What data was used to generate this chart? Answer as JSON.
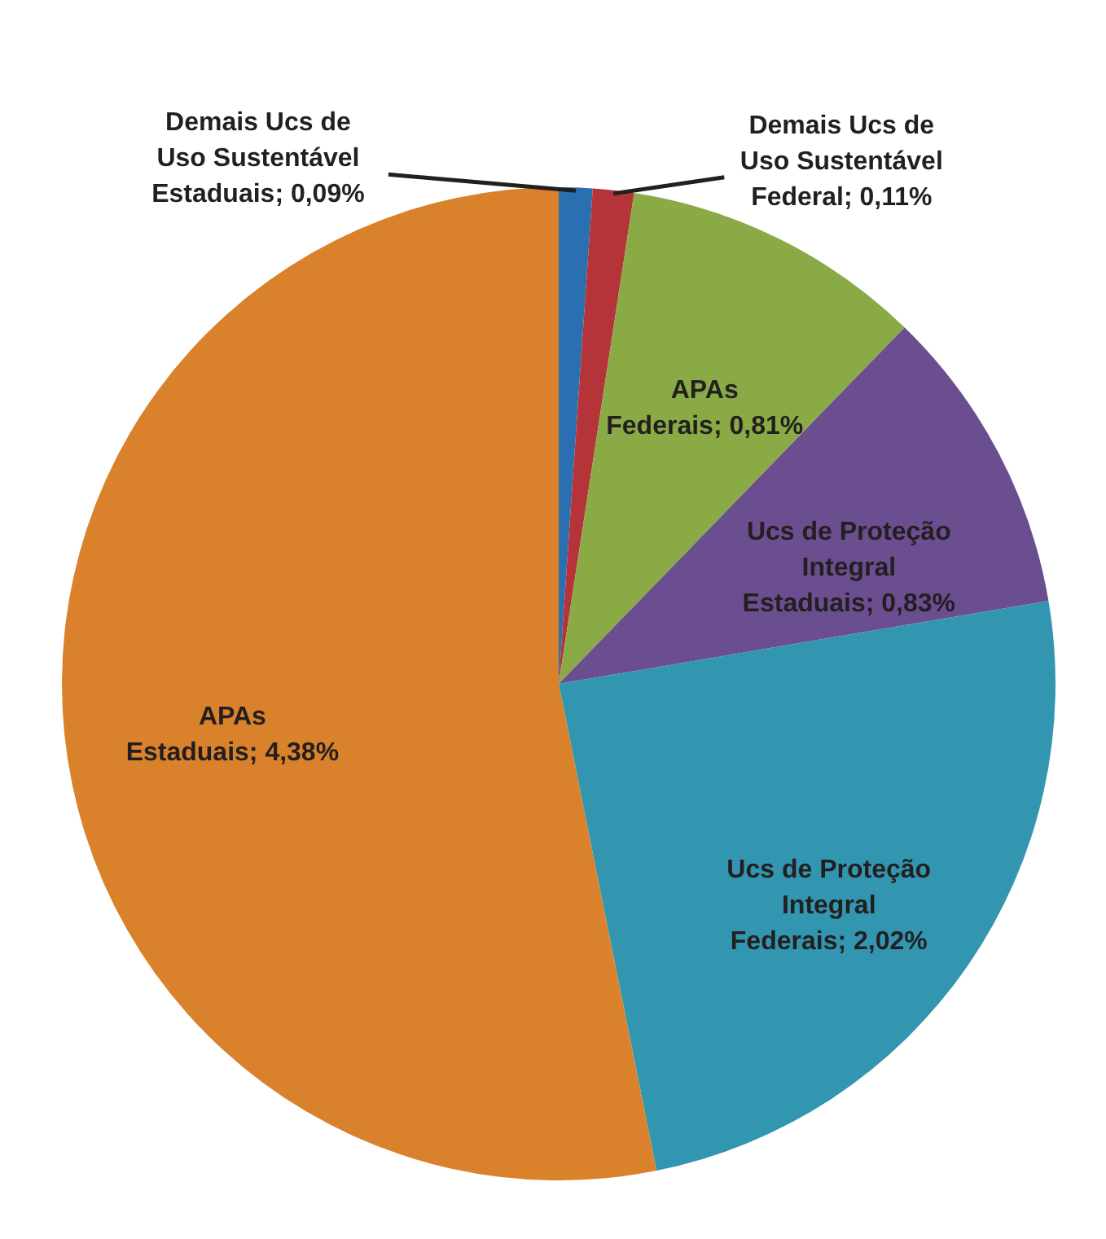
{
  "chart_data": {
    "type": "pie",
    "categories": [
      "Demais Ucs de Uso Sustentável Estaduais",
      "Demais Ucs de Uso Sustentável Federal",
      "APAs Federais",
      "Ucs de Proteção Integral Estaduais",
      "Ucs de Proteção Integral Federais",
      "APAs Estaduais"
    ],
    "values": [
      0.09,
      0.11,
      0.81,
      0.83,
      2.02,
      4.38
    ],
    "value_labels": [
      "0,09%",
      "0,11%",
      "0,81%",
      "0,83%",
      "2,02%",
      "4,38%"
    ],
    "colors": [
      "#2a6fb0",
      "#b5343a",
      "#8aaa45",
      "#6b4e8f",
      "#3296b0",
      "#d9822b"
    ]
  }
}
